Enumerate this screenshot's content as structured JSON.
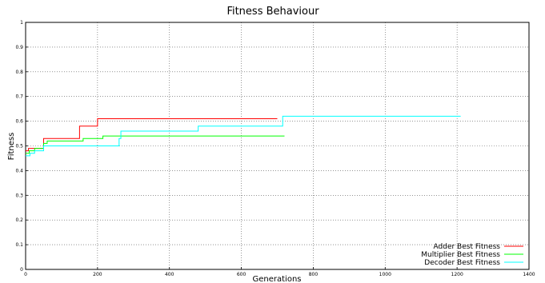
{
  "chart_data": {
    "type": "line",
    "title": "Fitness Behaviour",
    "xlabel": "Generations",
    "ylabel": "Fitness",
    "xlim": [
      0,
      1400
    ],
    "ylim": [
      0,
      1
    ],
    "xticks": [
      0,
      200,
      400,
      600,
      800,
      1000,
      1200,
      1400
    ],
    "yticks": [
      0,
      0.1,
      0.2,
      0.3,
      0.4,
      0.5,
      0.6,
      0.7,
      0.8,
      0.9,
      1
    ],
    "grid": true,
    "legend_position": "bottom-right",
    "series": [
      {
        "name": "Adder Best Fitness",
        "color": "#ff0000",
        "step": true,
        "x": [
          0,
          8,
          15,
          50,
          150,
          200,
          700
        ],
        "y": [
          0.48,
          0.49,
          0.49,
          0.53,
          0.58,
          0.61,
          0.61
        ]
      },
      {
        "name": "Multiplier Best Fitness",
        "color": "#00ff00",
        "step": true,
        "x": [
          0,
          10,
          25,
          50,
          60,
          160,
          215,
          260,
          720
        ],
        "y": [
          0.47,
          0.48,
          0.49,
          0.51,
          0.52,
          0.53,
          0.54,
          0.54,
          0.54
        ]
      },
      {
        "name": "Decoder Best Fitness",
        "color": "#00ffff",
        "step": true,
        "x": [
          0,
          12,
          25,
          50,
          260,
          265,
          480,
          715,
          1210
        ],
        "y": [
          0.46,
          0.47,
          0.48,
          0.5,
          0.53,
          0.56,
          0.58,
          0.62,
          0.62
        ]
      }
    ]
  }
}
